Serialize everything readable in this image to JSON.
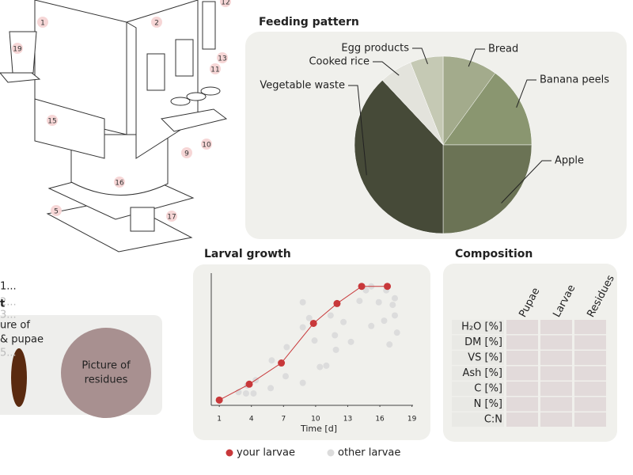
{
  "chart_data": [
    {
      "type": "pie",
      "title": "Feeding pattern",
      "categories": [
        "Bread",
        "Banana peels",
        "Apple",
        "Vegetable waste",
        "Cooked rice",
        "Egg products"
      ],
      "values": [
        10,
        15,
        25,
        38,
        6,
        6
      ],
      "colors": [
        "#a3ab8c",
        "#8a9670",
        "#6b7355",
        "#464a38",
        "#e3e3dc",
        "#c5c9b4"
      ]
    },
    {
      "type": "scatter",
      "title": "Larval growth",
      "xlabel": "Time [d]",
      "xlim": [
        0.25,
        19.1
      ],
      "xticks": [
        1,
        4,
        7,
        10,
        13,
        16,
        19
      ],
      "ylim": [
        0,
        100
      ],
      "series": [
        {
          "name": "other larvae",
          "color": "#dcdcdc",
          "x": [
            2.8,
            3.5,
            4.2,
            3.6,
            4.4,
            5.8,
            5.9,
            7.3,
            7.2,
            8.8,
            8.8,
            8.8,
            9.4,
            9.9,
            10.4,
            11.0,
            11.4,
            11.8,
            11.9,
            12.6,
            13.3,
            14.1,
            14.7,
            15.2,
            15.9,
            16.4,
            16.6,
            17.2,
            17.4,
            17.4,
            16.9,
            17.6,
            15.2
          ],
          "values": [
            10,
            9,
            9,
            15,
            19,
            13,
            34,
            44,
            22,
            78,
            59,
            17,
            66,
            49,
            29,
            30,
            68,
            53,
            42,
            63,
            48,
            79,
            87,
            60,
            78,
            64,
            87,
            76,
            81,
            68,
            46,
            55,
            90
          ]
        },
        {
          "name": "your larvae",
          "color": "#c8383a",
          "line": true,
          "x": [
            1,
            3.8,
            6.8,
            9.8,
            12,
            14.3,
            16.7
          ],
          "values": [
            4,
            16,
            32,
            62,
            77,
            90,
            90
          ]
        }
      ]
    }
  ],
  "composition": {
    "title": "Composition",
    "columns": [
      "Pupae",
      "Larvae",
      "Residues"
    ],
    "rows": [
      "H₂O [%]",
      "DM [%]",
      "VS [%]",
      "Ash [%]",
      "C [%]",
      "N [%]",
      "C:N"
    ]
  },
  "side_panel": {
    "steps": [
      "1...",
      "2...",
      "3...",
      "5..."
    ],
    "heading": "t",
    "text_lines": [
      "ure of",
      "& pupae"
    ],
    "residues_lines": [
      "Picture of",
      "residues"
    ]
  },
  "diagram": {
    "labels": [
      "1",
      "2",
      "12",
      "19",
      "13",
      "11",
      "15",
      "10",
      "9",
      "16",
      "5",
      "17"
    ]
  }
}
